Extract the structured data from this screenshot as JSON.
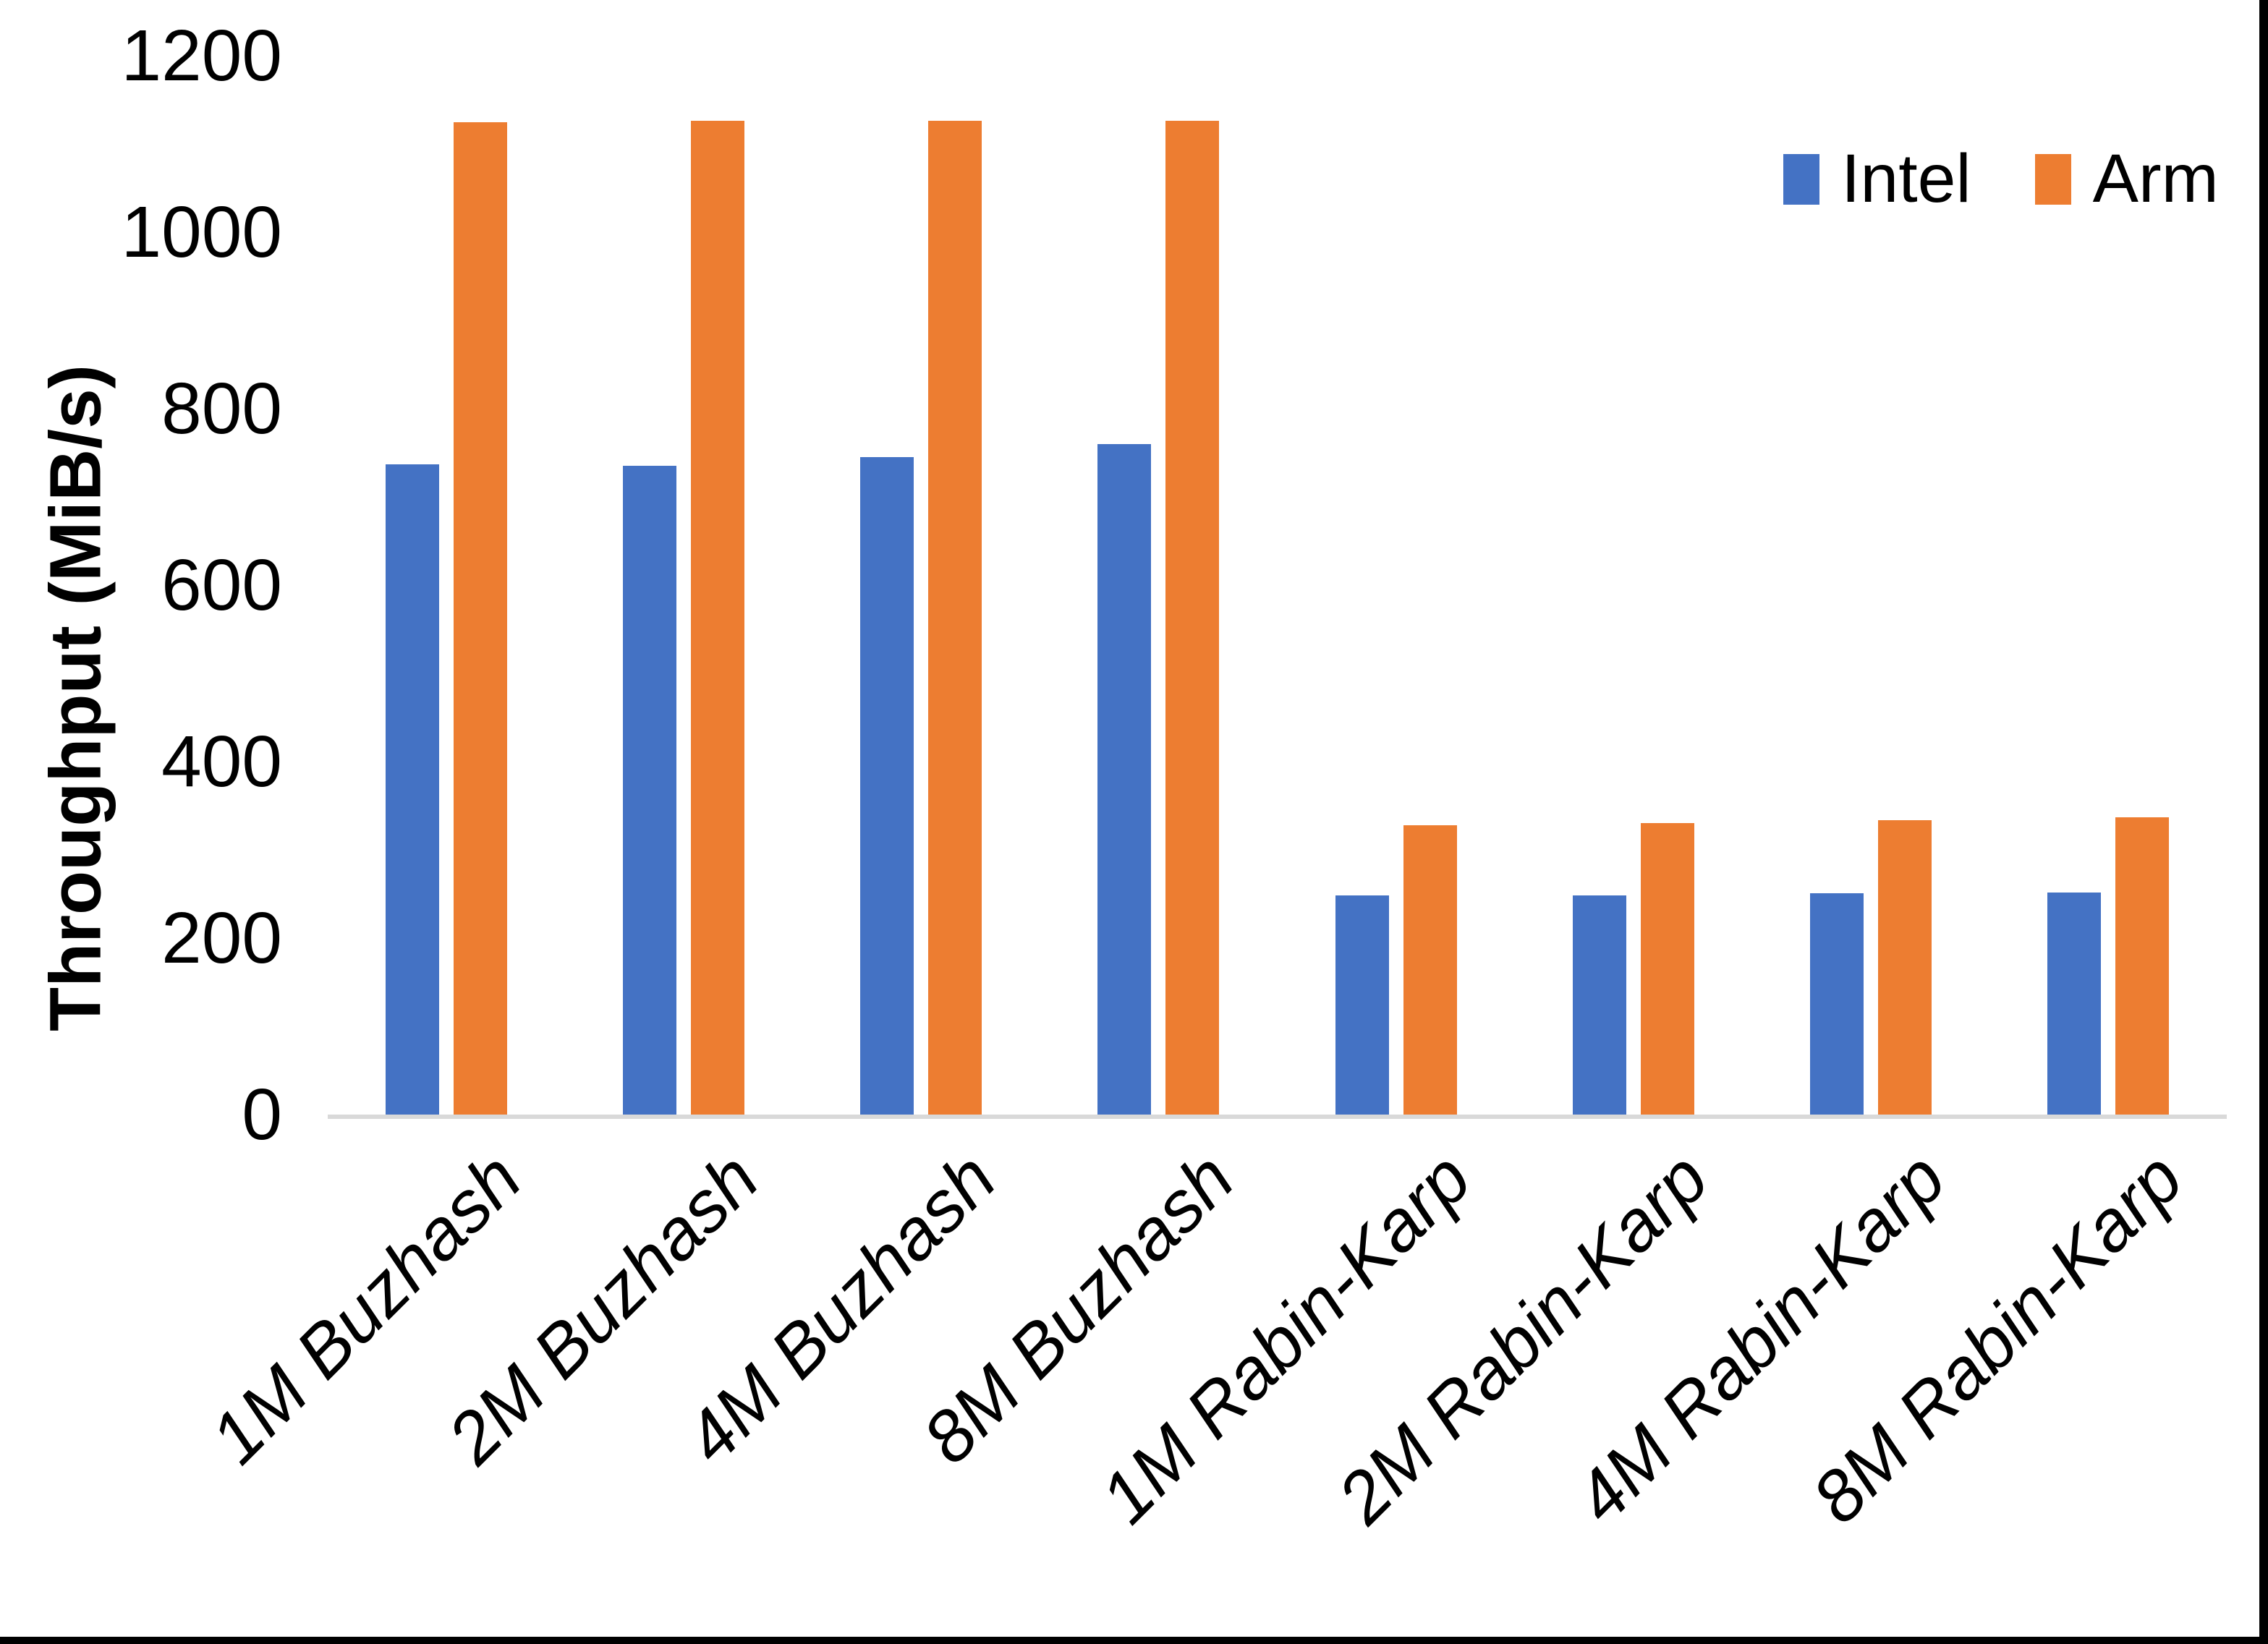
{
  "chart_data": {
    "type": "bar",
    "title": "",
    "xlabel": "",
    "ylabel": "Throughput (MiB/s)",
    "ylim": [
      0,
      1200
    ],
    "yticks": [
      0,
      200,
      400,
      600,
      800,
      1000,
      1200
    ],
    "grid": false,
    "legend_position": "top-right",
    "categories": [
      "1M Buzhash",
      "2M Buzhash",
      "4M Buzhash",
      "8M Buzhash",
      "1M Rabin-Karp",
      "2M Rabin-Karp",
      "4M Rabin-Karp",
      "8M Rabin-Karp"
    ],
    "series": [
      {
        "name": "Intel",
        "color": "#4472C4",
        "values": [
          737,
          735,
          745,
          760,
          248,
          248,
          251,
          252
        ]
      },
      {
        "name": "Arm",
        "color": "#ED7D31",
        "values": [
          1125,
          1126,
          1126,
          1126,
          328,
          330,
          334,
          337
        ]
      }
    ],
    "axis_line_color": "#D9D9D9",
    "background_color": "#FFFFFF",
    "edge_border_color": "#000000"
  }
}
